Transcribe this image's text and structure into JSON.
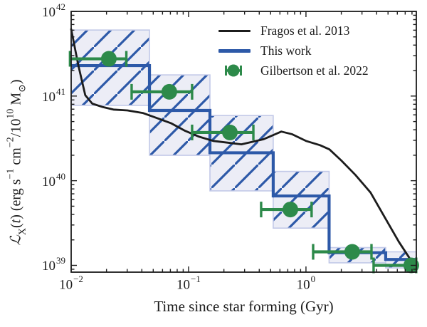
{
  "style": {
    "black": "#1c1c1c",
    "blue": "#2d59a8",
    "green": "#2d8a4a",
    "box_fill": "#ecedf6",
    "box_border": "#c2c9e8",
    "background": "#ffffff"
  },
  "axes": {
    "xlabel": "Time since star forming (Gyr)",
    "ylabel": {
      "cal": "ℒ",
      "cal_sub": "X",
      "p1": "(",
      "tvar": "t",
      "p2": ") (erg s",
      "e1": "−1",
      "p3": " cm",
      "e2": "−2",
      "p4": "/10",
      "e3": "10",
      "p5": " M",
      "sun": "⊙",
      "p6": ")"
    },
    "x_ticks": [
      {
        "base": "10",
        "exp": "−2",
        "log10": -2
      },
      {
        "base": "10",
        "exp": "−1",
        "log10": -1
      },
      {
        "base": "10",
        "exp": "0",
        "log10": 0
      }
    ],
    "y_ticks": [
      {
        "base": "10",
        "exp": "42",
        "log10": 42
      },
      {
        "base": "10",
        "exp": "41",
        "log10": 41
      },
      {
        "base": "10",
        "exp": "40",
        "log10": 40
      },
      {
        "base": "10",
        "exp": "39",
        "log10": 39
      }
    ]
  },
  "legend": [
    {
      "label": "Fragos et al. 2013",
      "swatch": "black-line"
    },
    {
      "label": "This work",
      "swatch": "blue-line"
    },
    {
      "label": "Gilbertson et al. 2022",
      "swatch": "green-marker"
    }
  ],
  "chart_data": {
    "type": "line",
    "title": "",
    "xlabel": "Time since star forming (Gyr)",
    "ylabel": "L_X(t) (erg s^-1 cm^-2 / 10^10 Msun)",
    "x_axis": {
      "scale": "log",
      "unit": "Gyr",
      "range_log10": [
        -2,
        0.94
      ],
      "major_ticks": [
        0.01,
        0.1,
        1
      ],
      "minor_ticks_per_decade": [
        2,
        3,
        4,
        5,
        6,
        7,
        8,
        9
      ]
    },
    "y_axis": {
      "scale": "log",
      "unit": "erg s^-1 cm^-2 / 10^10 Msun",
      "range_log10": [
        38.92,
        42
      ],
      "major_ticks": [
        1e+39,
        1e+40,
        1e+41,
        1e+42
      ],
      "minor_ticks_per_decade": [
        2,
        3,
        4,
        5,
        6,
        7,
        8,
        9
      ]
    },
    "grid": false,
    "legend_position": "upper right",
    "series": [
      {
        "name": "Fragos et al. 2013",
        "type": "line",
        "color": "#1c1c1c",
        "points_log10": [
          [
            -2.0,
            41.79
          ],
          [
            -1.94,
            41.37
          ],
          [
            -1.88,
            41.01
          ],
          [
            -1.82,
            40.91
          ],
          [
            -1.73,
            40.87
          ],
          [
            -1.64,
            40.84
          ],
          [
            -1.52,
            40.83
          ],
          [
            -1.39,
            40.8
          ],
          [
            -1.27,
            40.74
          ],
          [
            -1.15,
            40.68
          ],
          [
            -1.03,
            40.59
          ],
          [
            -0.91,
            40.52
          ],
          [
            -0.79,
            40.47
          ],
          [
            -0.67,
            40.45
          ],
          [
            -0.55,
            40.43
          ],
          [
            -0.36,
            40.49
          ],
          [
            -0.21,
            40.58
          ],
          [
            -0.12,
            40.55
          ],
          [
            0.0,
            40.47
          ],
          [
            0.12,
            40.42
          ],
          [
            0.2,
            40.37
          ],
          [
            0.3,
            40.24
          ],
          [
            0.42,
            40.07
          ],
          [
            0.55,
            39.86
          ],
          [
            0.67,
            39.57
          ],
          [
            0.79,
            39.28
          ],
          [
            0.88,
            39.09
          ],
          [
            0.94,
            38.93
          ]
        ]
      },
      {
        "name": "This work",
        "type": "step",
        "color": "#2d59a8",
        "band_fill": "#ecedf6",
        "hatch": "/",
        "bin_edges_log10_gyr": [
          -2.0,
          -1.333,
          -0.818,
          -0.279,
          0.197,
          0.679,
          0.94
        ],
        "bin_edges_gyr": [
          0.01,
          0.046,
          0.15,
          0.53,
          1.57,
          4.8,
          8.7
        ],
        "levels_log10": [
          41.36,
          40.83,
          40.33,
          39.82,
          39.15,
          39.07
        ],
        "band_lo_log10": [
          40.89,
          40.3,
          39.88,
          39.44,
          39.03,
          38.97
        ],
        "band_hi_log10": [
          41.78,
          41.25,
          40.77,
          40.11,
          39.21,
          39.16
        ]
      },
      {
        "name": "Gilbertson et al. 2022",
        "type": "scatter",
        "color": "#2d8a4a",
        "points": [
          {
            "t_log10": -1.679,
            "t_lo_log10": -2.01,
            "t_hi_log10": -1.53,
            "L_log10": 41.44
          },
          {
            "t_log10": -1.164,
            "t_lo_log10": -1.485,
            "t_hi_log10": -0.97,
            "L_log10": 41.05
          },
          {
            "t_log10": -0.648,
            "t_lo_log10": -0.97,
            "t_hi_log10": -0.448,
            "L_log10": 40.57
          },
          {
            "t_log10": -0.133,
            "t_lo_log10": -0.382,
            "t_hi_log10": 0.048,
            "L_log10": 39.66
          },
          {
            "t_log10": 0.394,
            "t_lo_log10": 0.061,
            "t_hi_log10": 0.558,
            "L_log10": 39.16
          },
          {
            "t_log10": 0.897,
            "t_lo_log10": 0.576,
            "t_hi_log10": 0.939,
            "L_log10": 39.0
          }
        ]
      }
    ]
  }
}
